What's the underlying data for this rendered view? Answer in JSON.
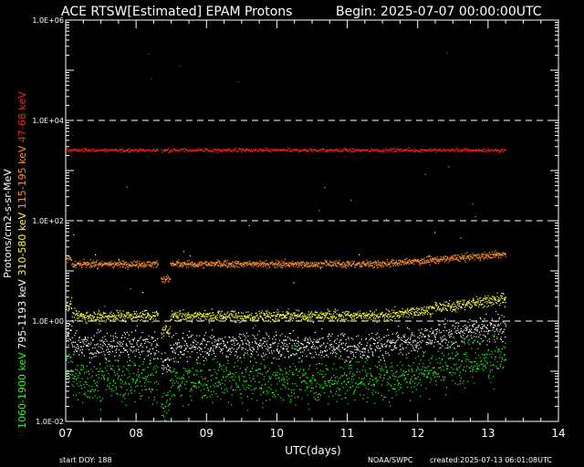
{
  "header": {
    "title": "ACE RTSW[Estimated] EPAM Protons",
    "begin_label": "Begin: 2025-07-07 00:00:00UTC"
  },
  "footer": {
    "start_doy": "start DOY:  188",
    "agency": "NOAA/SWPC",
    "created": "created:2025-07-13 06:01:08UTC"
  },
  "chart_data": {
    "type": "scatter",
    "title": "ACE RTSW[Estimated] EPAM Protons",
    "xlabel": "UTC(days)",
    "ylabel": "Protons/cm2-s-sr-MeV",
    "x_ticks": [
      "07",
      "08",
      "09",
      "10",
      "11",
      "12",
      "13",
      "14"
    ],
    "xlim": [
      7,
      14
    ],
    "y_scale": "log",
    "ylim": [
      0.01,
      1000000
    ],
    "y_ticks": [
      {
        "value": 0.01,
        "label": "1.0E-02"
      },
      {
        "value": 1,
        "label": "1.0E+00"
      },
      {
        "value": 100,
        "label": "1.0E+02"
      },
      {
        "value": 10000,
        "label": "1.0E+04"
      },
      {
        "value": 1000000,
        "label": "1.0E+06"
      }
    ],
    "dashed_gridlines": [
      1,
      100,
      10000
    ],
    "data_end_day": 13.25,
    "gap_day": 8.33,
    "series": [
      {
        "name": "47-68 keV",
        "color": "#ff2020",
        "base": 2600,
        "spread": 0.025,
        "ramp": 0.0,
        "gap_drop": 0.0
      },
      {
        "name": "115-195 keV",
        "color": "#ff9030",
        "base": 14,
        "spread": 0.05,
        "ramp": 0.2,
        "gap_drop": 0.3
      },
      {
        "name": "310-580 keV",
        "color": "#ffff40",
        "base": 1.3,
        "spread": 0.08,
        "ramp": 0.35,
        "gap_drop": 0.3
      },
      {
        "name": "795-1193 keV",
        "color": "#ffffff",
        "base": 0.33,
        "spread": 0.2,
        "ramp": 0.4,
        "gap_drop": 0.4
      },
      {
        "name": "1060-1900 keV",
        "color": "#20ff20",
        "base": 0.07,
        "spread": 0.32,
        "ramp": 0.5,
        "gap_drop": 0.5
      }
    ]
  }
}
